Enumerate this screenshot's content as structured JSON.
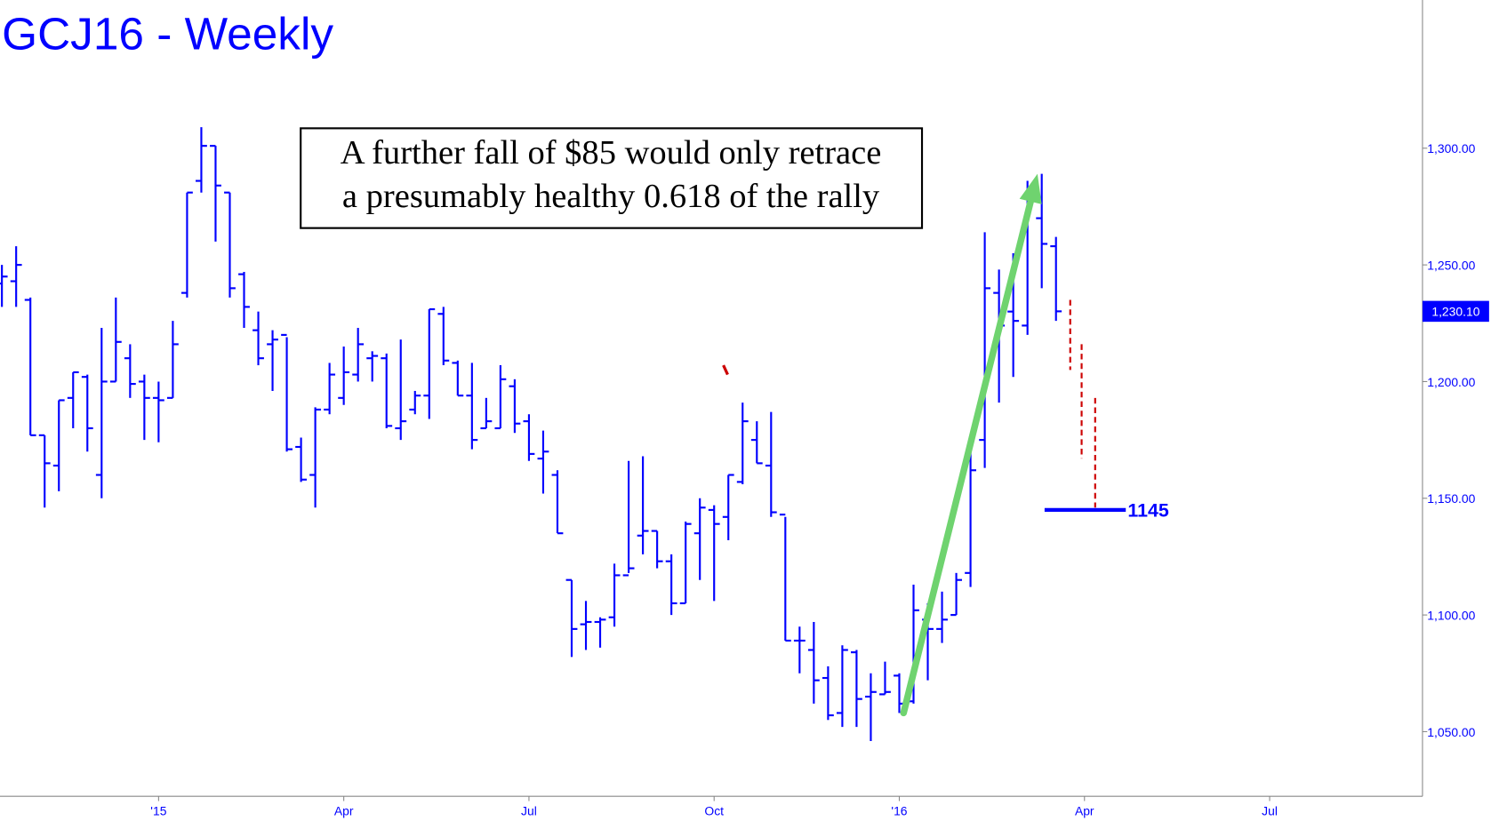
{
  "chart_data": {
    "type": "ohlc",
    "title": "GCJ16 - Weekly",
    "annotation": [
      "A further fall of $85 would only retrace",
      "a presumably healthy 0.618 of the rally"
    ],
    "color": "#0000ff",
    "open": [
      1242,
      1243,
      1235,
      1177,
      1164,
      1193,
      1202,
      1160,
      1200,
      1210,
      1200,
      1193,
      1193,
      1238,
      1286,
      1301,
      1281,
      1246,
      1222,
      1216,
      1220,
      1172,
      1160,
      1188,
      1193,
      1203,
      1210,
      1210,
      1180,
      1188,
      1194,
      1229,
      1208,
      1194,
      1180,
      1180,
      1198,
      1183,
      1167,
      1160,
      1115,
      1096,
      1097,
      1099,
      1117,
      1134,
      1136,
      1123,
      1105,
      1135,
      1145,
      1142,
      1157,
      1175,
      1164,
      1143,
      1089,
      1085,
      1073,
      1058,
      1084,
      1065,
      1066,
      1074,
      1063,
      1098,
      1094,
      1100,
      1118,
      1175,
      1238,
      1230,
      1224,
      1270,
      1258
    ],
    "high": [
      1250,
      1258,
      1236,
      1177,
      1192,
      1204,
      1203,
      1223,
      1236,
      1216,
      1203,
      1200,
      1226,
      1281,
      1309,
      1301,
      1281,
      1247,
      1230,
      1222,
      1219,
      1176,
      1189,
      1208,
      1215,
      1223,
      1213,
      1212,
      1218,
      1196,
      1231,
      1232,
      1209,
      1208,
      1193,
      1207,
      1201,
      1186,
      1179,
      1162,
      1115,
      1106,
      1099,
      1122,
      1166,
      1168,
      1136,
      1126,
      1140,
      1150,
      1147,
      1160,
      1191,
      1183,
      1187,
      1142,
      1095,
      1097,
      1078,
      1087,
      1085,
      1075,
      1080,
      1075,
      1113,
      1105,
      1110,
      1118,
      1176,
      1264,
      1248,
      1255,
      1286,
      1289,
      1262
    ],
    "low": [
      1232,
      1232,
      1177,
      1146,
      1153,
      1180,
      1170,
      1150,
      1200,
      1193,
      1175,
      1174,
      1193,
      1236,
      1281,
      1260,
      1236,
      1223,
      1207,
      1196,
      1170,
      1157,
      1146,
      1186,
      1190,
      1200,
      1200,
      1180,
      1175,
      1186,
      1184,
      1207,
      1194,
      1171,
      1180,
      1180,
      1178,
      1166,
      1152,
      1135,
      1082,
      1085,
      1086,
      1095,
      1118,
      1126,
      1120,
      1100,
      1105,
      1115,
      1106,
      1132,
      1156,
      1165,
      1142,
      1089,
      1075,
      1062,
      1055,
      1052,
      1052,
      1046,
      1066,
      1058,
      1062,
      1072,
      1088,
      1100,
      1112,
      1163,
      1191,
      1202,
      1220,
      1240,
      1226
    ],
    "close": [
      1245,
      1250,
      1177,
      1165,
      1192,
      1204,
      1180,
      1200,
      1217,
      1199,
      1193,
      1192,
      1216,
      1281,
      1301,
      1284,
      1240,
      1232,
      1210,
      1218,
      1171,
      1158,
      1188,
      1203,
      1204,
      1216,
      1211,
      1181,
      1183,
      1194,
      1231,
      1209,
      1194,
      1175,
      1183,
      1201,
      1182,
      1169,
      1170,
      1135,
      1094,
      1097,
      1098,
      1117,
      1120,
      1136,
      1123,
      1105,
      1139,
      1146,
      1139,
      1160,
      1183,
      1165,
      1144,
      1089,
      1089,
      1072,
      1057,
      1085,
      1064,
      1067,
      1067,
      1062,
      1102,
      1094,
      1098,
      1115,
      1162,
      1240,
      1224,
      1226,
      1280,
      1259,
      1230.1
    ],
    "last_price": {
      "value": 1230.1,
      "label": "1,230.10"
    },
    "level": 1145,
    "level_x": [
      73.2,
      78.9
    ],
    "arrow": {
      "x": [
        63.3,
        72.7
      ],
      "y": [
        1058,
        1289
      ],
      "color": "#6fd36f"
    },
    "projections": {
      "color": "#cc0000",
      "x": [
        75.0,
        75.8,
        76.75
      ],
      "top": [
        1235,
        1216,
        1193
      ],
      "bottom": [
        1205,
        1167,
        1146
      ]
    },
    "marker": {
      "x": [
        50.65,
        50.95
      ],
      "y": [
        1207,
        1203
      ],
      "color": "#cc0000"
    },
    "xlim": [
      -0.134,
      99.73
    ],
    "xticks": [
      {
        "value": 11,
        "label": "'15"
      },
      {
        "value": 24,
        "label": "Apr"
      },
      {
        "value": 37,
        "label": "Jul"
      },
      {
        "value": 50,
        "label": "Oct"
      },
      {
        "value": 63,
        "label": "'16"
      },
      {
        "value": 76,
        "label": "Apr"
      },
      {
        "value": 89,
        "label": "Jul"
      }
    ],
    "ylim": [
      1022.3,
      1363.5
    ],
    "yticks": [
      {
        "value": 1050,
        "label": "1,050.00"
      },
      {
        "value": 1100,
        "label": "1,100.00"
      },
      {
        "value": 1150,
        "label": "1,150.00"
      },
      {
        "value": 1200,
        "label": "1,200.00"
      },
      {
        "value": 1250,
        "label": "1,250.00"
      },
      {
        "value": 1300,
        "label": "1,300.00"
      }
    ]
  }
}
